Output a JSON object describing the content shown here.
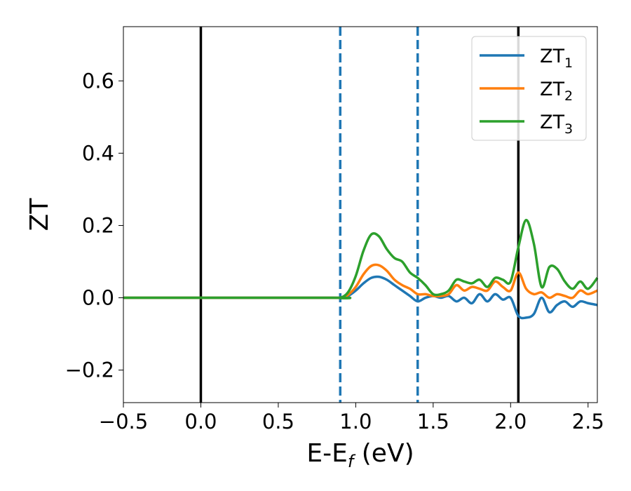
{
  "chart_data": {
    "type": "line",
    "xlabel": {
      "main": "E-E",
      "sub": "f",
      "tail": " (eV)"
    },
    "ylabel": "ZT",
    "xlim": [
      -0.5,
      2.56
    ],
    "ylim": [
      -0.29,
      0.75
    ],
    "xticks": [
      -0.5,
      0.0,
      0.5,
      1.0,
      1.5,
      2.0,
      2.5
    ],
    "xtick_labels": [
      "−0.5",
      "0.0",
      "0.5",
      "1.0",
      "1.5",
      "2.0",
      "2.5"
    ],
    "yticks": [
      -0.2,
      0.0,
      0.2,
      0.4,
      0.6
    ],
    "ytick_labels": [
      "−0.2",
      "0.0",
      "0.2",
      "0.4",
      "0.6"
    ],
    "grid": false,
    "legend_position": "top-right",
    "vlines": [
      {
        "x": 0.0,
        "style": "solid",
        "color": "#000000"
      },
      {
        "x": 0.9,
        "style": "dashed",
        "color": "#1f77b4"
      },
      {
        "x": 1.4,
        "style": "dashed",
        "color": "#1f77b4"
      },
      {
        "x": 2.05,
        "style": "solid",
        "color": "#000000"
      }
    ],
    "series": [
      {
        "name": "ZT",
        "sub": "1",
        "color": "#1f77b4",
        "x": [
          -0.5,
          0.85,
          0.9,
          0.95,
          1.0,
          1.05,
          1.1,
          1.15,
          1.2,
          1.25,
          1.3,
          1.35,
          1.4,
          1.45,
          1.5,
          1.55,
          1.6,
          1.65,
          1.7,
          1.75,
          1.8,
          1.85,
          1.9,
          1.95,
          2.0,
          2.05,
          2.1,
          2.15,
          2.2,
          2.25,
          2.3,
          2.35,
          2.4,
          2.45,
          2.5,
          2.56
        ],
        "y": [
          0.0,
          0.0,
          0.0,
          0.005,
          0.02,
          0.04,
          0.055,
          0.058,
          0.05,
          0.035,
          0.02,
          0.005,
          -0.01,
          0.0,
          0.005,
          0.0,
          0.005,
          -0.01,
          0.0,
          -0.015,
          0.01,
          -0.01,
          0.01,
          -0.005,
          0.0,
          -0.05,
          -0.055,
          -0.045,
          0.0,
          -0.04,
          -0.02,
          -0.01,
          -0.025,
          -0.01,
          -0.015,
          -0.02
        ]
      },
      {
        "name": "ZT",
        "sub": "2",
        "color": "#ff7f0e",
        "x": [
          -0.5,
          0.85,
          0.9,
          0.95,
          1.0,
          1.05,
          1.1,
          1.15,
          1.2,
          1.25,
          1.3,
          1.35,
          1.4,
          1.45,
          1.5,
          1.55,
          1.6,
          1.65,
          1.7,
          1.75,
          1.8,
          1.85,
          1.9,
          1.95,
          2.0,
          2.05,
          2.1,
          2.15,
          2.2,
          2.25,
          2.3,
          2.35,
          2.4,
          2.45,
          2.5,
          2.56
        ],
        "y": [
          0.0,
          0.0,
          0.0,
          0.008,
          0.03,
          0.065,
          0.088,
          0.09,
          0.075,
          0.05,
          0.035,
          0.025,
          0.01,
          0.01,
          0.005,
          0.005,
          0.01,
          0.035,
          0.02,
          0.03,
          0.025,
          0.02,
          0.045,
          0.03,
          0.02,
          0.07,
          0.025,
          0.01,
          0.015,
          0.0,
          0.01,
          0.005,
          0.0,
          0.02,
          0.01,
          0.02
        ]
      },
      {
        "name": "ZT",
        "sub": "3",
        "color": "#2ca02c",
        "x": [
          -0.5,
          0.85,
          0.9,
          0.95,
          1.0,
          1.05,
          1.1,
          1.15,
          1.2,
          1.25,
          1.3,
          1.35,
          1.4,
          1.45,
          1.5,
          1.55,
          1.6,
          1.65,
          1.7,
          1.75,
          1.8,
          1.85,
          1.9,
          1.95,
          2.0,
          2.05,
          2.1,
          2.15,
          2.2,
          2.25,
          2.3,
          2.35,
          2.4,
          2.45,
          2.5,
          2.56
        ],
        "y": [
          0.0,
          0.0,
          0.0,
          0.015,
          0.06,
          0.13,
          0.175,
          0.17,
          0.135,
          0.11,
          0.1,
          0.07,
          0.055,
          0.035,
          0.01,
          0.01,
          0.02,
          0.05,
          0.045,
          0.04,
          0.05,
          0.03,
          0.055,
          0.05,
          0.045,
          0.14,
          0.215,
          0.15,
          0.03,
          0.085,
          0.08,
          0.045,
          0.025,
          0.045,
          0.025,
          0.055
        ]
      }
    ]
  }
}
